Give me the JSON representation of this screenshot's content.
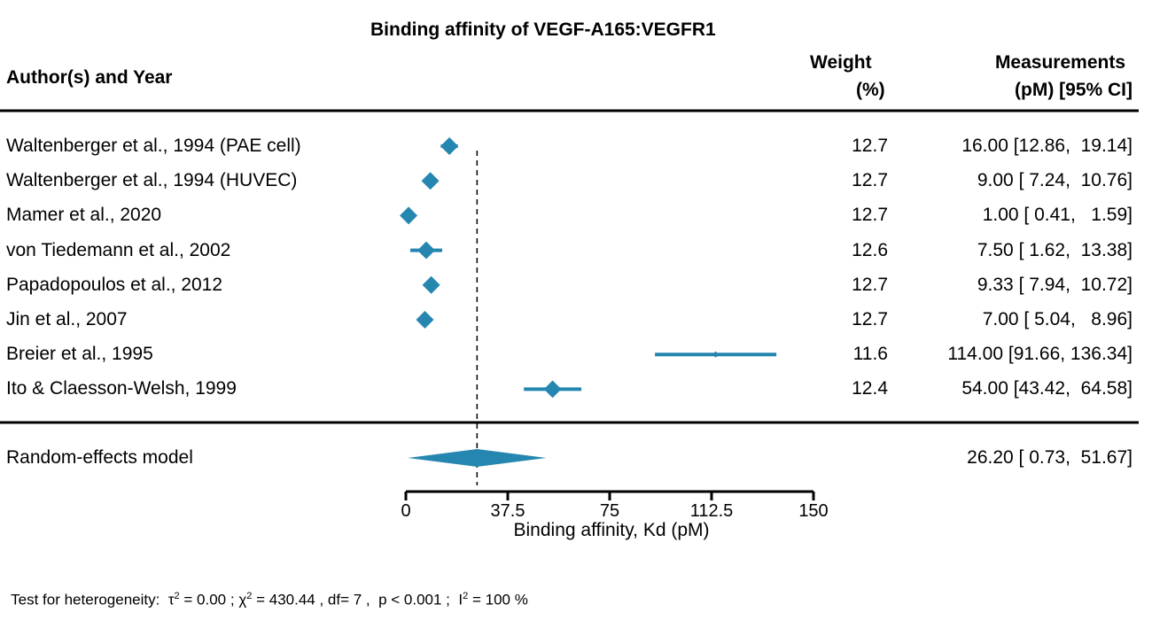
{
  "colors": {
    "marker": "#2586b0",
    "text": "#000000"
  },
  "chart_data": {
    "type": "forest",
    "title": "Binding affinity of VEGF-A165:VEGFR1",
    "xlabel": "Binding affinity, Kd (pM)",
    "xlim": [
      0,
      150
    ],
    "xticks": [
      "0",
      "37.5",
      "75",
      "112.5",
      "150"
    ],
    "col_headers": {
      "study": "Author(s) and Year",
      "weight_line1": "Weight",
      "weight_line2": "(%)",
      "meas_line1": "Measurements",
      "meas_line2": "(pM) [95% CI]"
    },
    "studies": [
      {
        "label": "Waltenberger et al., 1994 (PAE cell)",
        "est": 16.0,
        "lo": 12.86,
        "hi": 19.14,
        "weight": "12.7",
        "text": "16.00 [12.86,  19.14]"
      },
      {
        "label": "Waltenberger et al., 1994 (HUVEC)",
        "est": 9.0,
        "lo": 7.24,
        "hi": 10.76,
        "weight": "12.7",
        "text": "9.00 [ 7.24,  10.76]"
      },
      {
        "label": "Mamer et al., 2020",
        "est": 1.0,
        "lo": 0.41,
        "hi": 1.59,
        "weight": "12.7",
        "text": "1.00 [ 0.41,   1.59]"
      },
      {
        "label": "von Tiedemann et al., 2002",
        "est": 7.5,
        "lo": 1.62,
        "hi": 13.38,
        "weight": "12.6",
        "text": "7.50 [ 1.62,  13.38]"
      },
      {
        "label": "Papadopoulos et al., 2012",
        "est": 9.33,
        "lo": 7.94,
        "hi": 10.72,
        "weight": "12.7",
        "text": "9.33 [ 7.94,  10.72]"
      },
      {
        "label": "Jin et al., 2007",
        "est": 7.0,
        "lo": 5.04,
        "hi": 8.96,
        "weight": "12.7",
        "text": "7.00 [ 5.04,   8.96]"
      },
      {
        "label": "Breier et al., 1995",
        "est": 114.0,
        "lo": 91.66,
        "hi": 136.34,
        "weight": "11.6",
        "text": "114.00 [91.66, 136.34]"
      },
      {
        "label": "Ito & Claesson-Welsh, 1999",
        "est": 54.0,
        "lo": 43.42,
        "hi": 64.58,
        "weight": "12.4",
        "text": "54.00 [43.42,  64.58]"
      }
    ],
    "pooled": {
      "label": "Random-effects model",
      "est": 26.2,
      "lo": 0.73,
      "hi": 51.67,
      "text": "26.20 [ 0.73,  51.67]"
    },
    "heterogeneity": {
      "prefix": "Test for heterogeneity:",
      "tau_symbol": "τ",
      "tau_value": " = 0.00 ;",
      "chi_symbol": "χ",
      "chi_value": " = 430.44 , df= 7 ,  p < 0.001 ;",
      "i_symbol": "I",
      "i_value": " = 100 %",
      "superscript": "2"
    }
  }
}
